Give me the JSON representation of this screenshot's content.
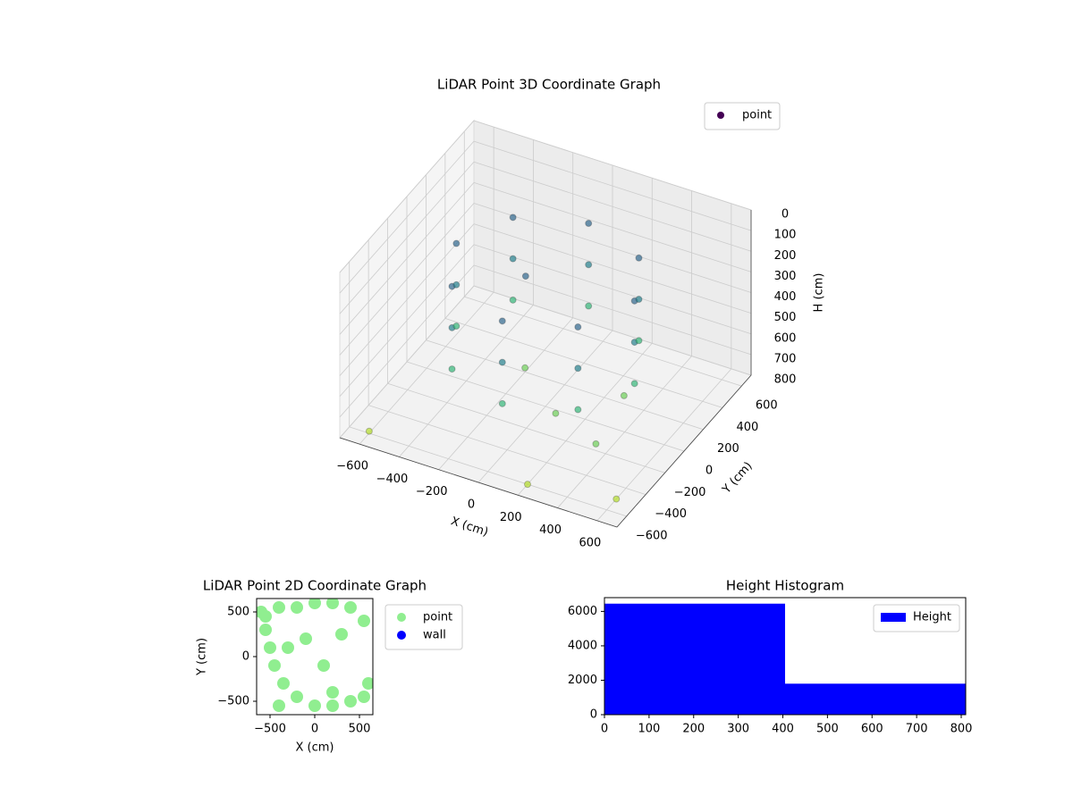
{
  "chart_data": [
    {
      "type": "scatter3d",
      "title": "LiDAR Point 3D Coordinate Graph",
      "xlabel": "X (cm)",
      "ylabel": "Y (cm)",
      "zlabel": "H (cm)",
      "series": [
        {
          "name": "point",
          "color": "#440154",
          "x": [
            450,
            318,
            0,
            -318,
            -450,
            -318,
            0,
            318,
            450,
            318,
            0,
            -318,
            -450,
            -318,
            0,
            318,
            450,
            318,
            0,
            -318,
            -450,
            -318,
            0,
            318,
            100,
            -200,
            300,
            600,
            -600,
            200,
            -100,
            400
          ],
          "y": [
            0,
            318,
            450,
            318,
            0,
            -318,
            -450,
            -318,
            0,
            318,
            450,
            318,
            0,
            -318,
            -450,
            -318,
            0,
            318,
            450,
            318,
            0,
            -318,
            -450,
            -318,
            -100,
            200,
            200,
            -500,
            -600,
            -600,
            0,
            -300
          ],
          "z": [
            150,
            150,
            150,
            150,
            150,
            150,
            150,
            150,
            350,
            350,
            350,
            350,
            350,
            350,
            350,
            350,
            550,
            550,
            550,
            550,
            550,
            550,
            550,
            550,
            750,
            780,
            760,
            800,
            790,
            800,
            200,
            700
          ]
        }
      ],
      "xlim": [
        -700,
        700
      ],
      "ylim": [
        -700,
        700
      ],
      "zlim": [
        800,
        0
      ],
      "xticks": [
        {
          "value": -600,
          "label": "−600"
        },
        {
          "value": -400,
          "label": "−400"
        },
        {
          "value": -200,
          "label": "−200"
        },
        0,
        200,
        400,
        600
      ],
      "yticks": [
        {
          "value": -600,
          "label": "−600"
        },
        {
          "value": -400,
          "label": "−400"
        },
        {
          "value": -200,
          "label": "−200"
        },
        0,
        200,
        400,
        600
      ],
      "zticks": [
        0,
        100,
        200,
        300,
        400,
        500,
        600,
        700,
        800
      ],
      "colormap": "viridis",
      "grid": true,
      "legend": "upper right"
    },
    {
      "type": "scatter",
      "title": "LiDAR Point 2D Coordinate Graph",
      "xlabel": "X (cm)",
      "ylabel": "Y (cm)",
      "series": [
        {
          "name": "point",
          "color": "#90ee90",
          "x": [
            -600,
            -550,
            -500,
            -450,
            -350,
            -200,
            0,
            200,
            400,
            550,
            600,
            550,
            400,
            200,
            0,
            -200,
            -400,
            -550,
            -300,
            -100,
            100,
            300,
            -400,
            200
          ],
          "y": [
            500,
            300,
            100,
            -100,
            -300,
            -450,
            -550,
            -550,
            -500,
            -450,
            -300,
            400,
            550,
            600,
            600,
            550,
            550,
            450,
            100,
            200,
            -100,
            250,
            -550,
            -400
          ]
        },
        {
          "name": "wall",
          "color": "#0000ff",
          "x": [],
          "y": []
        }
      ],
      "xlim": [
        -650,
        650
      ],
      "ylim": [
        -650,
        650
      ],
      "xticks": [
        {
          "value": -500,
          "label": "−500"
        },
        0,
        500
      ],
      "yticks": [
        {
          "value": -500,
          "label": "−500"
        },
        0,
        500
      ],
      "legend": "outside upper right"
    },
    {
      "type": "hist",
      "title": "Height Histogram",
      "series": [
        {
          "name": "Height",
          "color": "#0000ff",
          "bins": [
            0,
            405,
            810
          ],
          "counts": [
            6450,
            1800
          ]
        }
      ],
      "xlim": [
        0,
        810
      ],
      "ylim": [
        0,
        6800
      ],
      "xticks": [
        0,
        100,
        200,
        300,
        400,
        500,
        600,
        700,
        800
      ],
      "yticks": [
        0,
        2000,
        4000,
        6000
      ],
      "legend": "upper right"
    }
  ]
}
